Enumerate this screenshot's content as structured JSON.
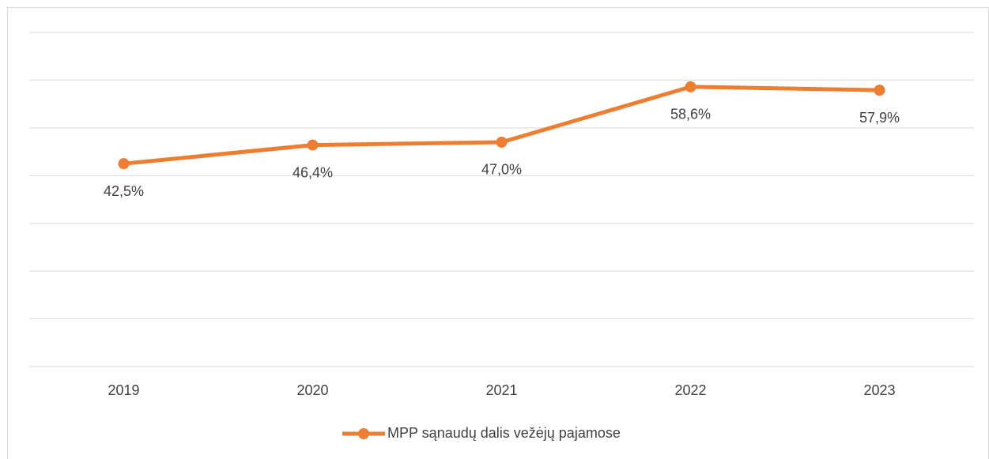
{
  "chart_data": {
    "type": "line",
    "categories": [
      "2019",
      "2020",
      "2021",
      "2022",
      "2023"
    ],
    "series": [
      {
        "name": "MPP sąnaudų dalis vežėjų pajamose",
        "color": "#ed7d31",
        "values": [
          42.5,
          46.4,
          47.0,
          58.6,
          57.9
        ],
        "value_labels": [
          "42,5%",
          "46,4%",
          "47,0%",
          "58,6%",
          "57,9%"
        ]
      }
    ],
    "ylim": [
      0,
      70
    ],
    "yticks": [
      0,
      10,
      20,
      30,
      40,
      50,
      60,
      70
    ],
    "grid": true,
    "legend": "bottom"
  }
}
